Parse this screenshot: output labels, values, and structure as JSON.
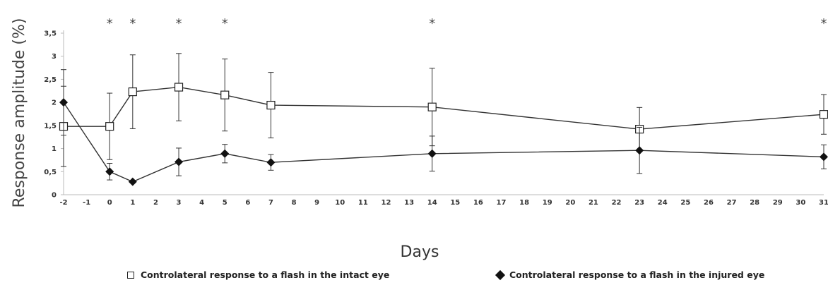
{
  "chart_data": {
    "type": "line",
    "xlabel": "Days",
    "ylabel": "Response amplitude (%)",
    "x_ticks": [
      "-2",
      "-1",
      "0",
      "1",
      "2",
      "3",
      "4",
      "5",
      "6",
      "7",
      "8",
      "9",
      "10",
      "11",
      "12",
      "13",
      "14",
      "15",
      "16",
      "17",
      "18",
      "19",
      "20",
      "21",
      "22",
      "23",
      "24",
      "25",
      "26",
      "27",
      "28",
      "29",
      "30",
      "31"
    ],
    "y_ticks": [
      "0",
      "0,5",
      "1",
      "1,5",
      "2",
      "2,5",
      "3",
      "3,5"
    ],
    "ylim": [
      0,
      3.5
    ],
    "significance_marker": "*",
    "significant_x": [
      "0",
      "1",
      "3",
      "5",
      "14",
      "31"
    ],
    "series": [
      {
        "name": "Controlateral response to a flash in the intact eye",
        "marker": "open-square",
        "x": [
          "-2",
          "0",
          "1",
          "3",
          "5",
          "7",
          "14",
          "23",
          "31"
        ],
        "y": [
          1.48,
          1.48,
          2.23,
          2.33,
          2.16,
          1.94,
          1.9,
          1.42,
          1.74
        ],
        "err": [
          0.87,
          0.72,
          0.8,
          0.73,
          0.78,
          0.71,
          0.84,
          0.47,
          0.43
        ]
      },
      {
        "name": "Controlateral response to a flash in the injured eye",
        "marker": "filled-diamond",
        "x": [
          "-2",
          "0",
          "1",
          "3",
          "5",
          "7",
          "14",
          "23",
          "31"
        ],
        "y": [
          2.0,
          0.5,
          0.28,
          0.71,
          0.89,
          0.7,
          0.89,
          0.96,
          0.82
        ],
        "err": [
          0.71,
          0.18,
          0.02,
          0.3,
          0.2,
          0.17,
          0.38,
          0.5,
          0.26
        ]
      }
    ],
    "grid": false,
    "legend_position": "bottom"
  }
}
